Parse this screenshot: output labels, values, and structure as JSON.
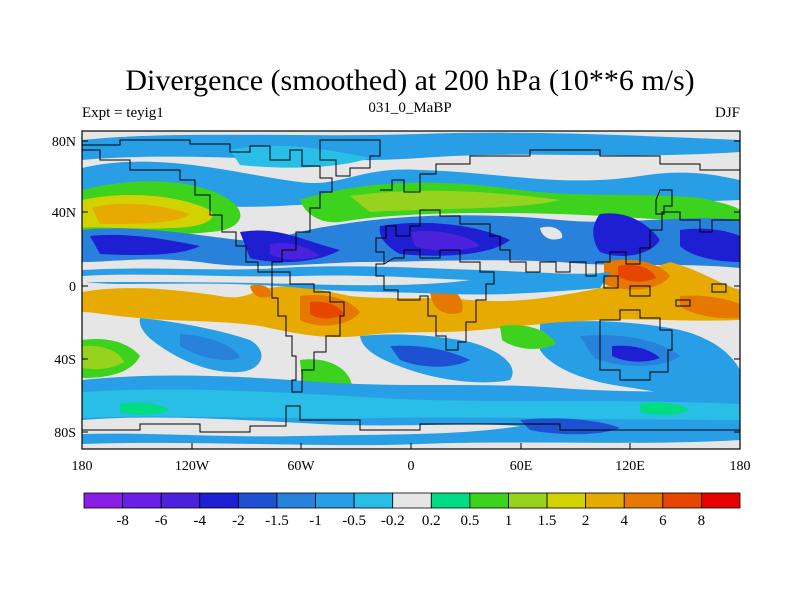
{
  "title": "Divergence (smoothed) at 200 hPa (10**6 m/s)",
  "subtitle_left": "Expt = teyig1",
  "subtitle_center": "031_0_MaBP",
  "subtitle_right": "DJF",
  "chart_data": {
    "type": "heatmap",
    "title": "Divergence (smoothed) at 200 hPa (10**6 m/s)",
    "x_ticks": [
      "180",
      "120W",
      "60W",
      "0",
      "60E",
      "120E",
      "180"
    ],
    "y_ticks": [
      "80N",
      "40N",
      "0",
      "40S",
      "80S"
    ],
    "x_range": [
      -180,
      180
    ],
    "y_range": [
      -90,
      90
    ],
    "colorbar": {
      "labels": [
        "-8",
        "-6",
        "-4",
        "-2",
        "-1.5",
        "-1",
        "-0.5",
        "-0.2",
        "0.2",
        "0.5",
        "1",
        "1.5",
        "2",
        "4",
        "6",
        "8"
      ],
      "colors": [
        "#8a1ee6",
        "#6a1ee6",
        "#4a22dc",
        "#1e1ed2",
        "#1e50d2",
        "#2882dc",
        "#289ee6",
        "#28bee6",
        "#e6e6e6",
        "#00dc82",
        "#3cd21e",
        "#96d21e",
        "#d2d200",
        "#e6aa00",
        "#e67800",
        "#e64600",
        "#e60000"
      ]
    }
  }
}
